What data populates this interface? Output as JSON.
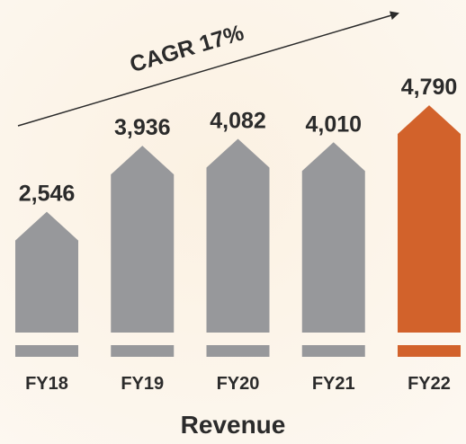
{
  "chart_data": {
    "type": "arrow-bar",
    "title": "Revenue",
    "annotation": "CAGR 17%",
    "categories": [
      "FY18",
      "FY19",
      "FY20",
      "FY21",
      "FY22"
    ],
    "values": [
      2546,
      3936,
      4082,
      4010,
      4790
    ],
    "value_labels": [
      "2,546",
      "3,936",
      "4,082",
      "4,010",
      "4,790"
    ],
    "colors": [
      "#97989b",
      "#97989b",
      "#97989b",
      "#97989b",
      "#d2622b"
    ]
  }
}
